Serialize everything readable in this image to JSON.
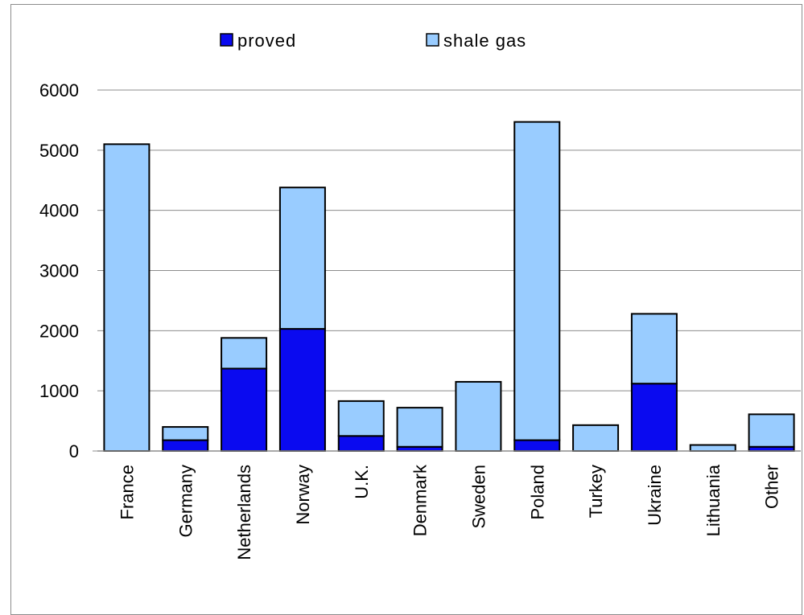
{
  "colors": {
    "proved": "#0a0af0",
    "shale_gas": "#99ccff",
    "outline": "#000000",
    "grid": "#8c8c8c"
  },
  "chart_data": {
    "type": "bar",
    "stacked": true,
    "title": "",
    "xlabel": "",
    "ylabel": "",
    "ylim": [
      0,
      6000
    ],
    "yticks": [
      "0",
      "1000",
      "2000",
      "3000",
      "4000",
      "5000",
      "6000"
    ],
    "grid": true,
    "legend_position": "top",
    "categories": [
      "France",
      "Germany",
      "Netherlands",
      "Norway",
      "U.K.",
      "Denmark",
      "Sweden",
      "Poland",
      "Turkey",
      "Ukraine",
      "Lithuania",
      "Other"
    ],
    "series": [
      {
        "name": "proved",
        "color": "#0a0af0",
        "values": [
          0,
          180,
          1370,
          2030,
          250,
          70,
          0,
          180,
          0,
          1120,
          0,
          70
        ]
      },
      {
        "name": "shale gas",
        "color": "#99ccff",
        "values": [
          5100,
          220,
          510,
          2350,
          580,
          650,
          1150,
          5290,
          430,
          1160,
          100,
          540
        ]
      }
    ]
  }
}
